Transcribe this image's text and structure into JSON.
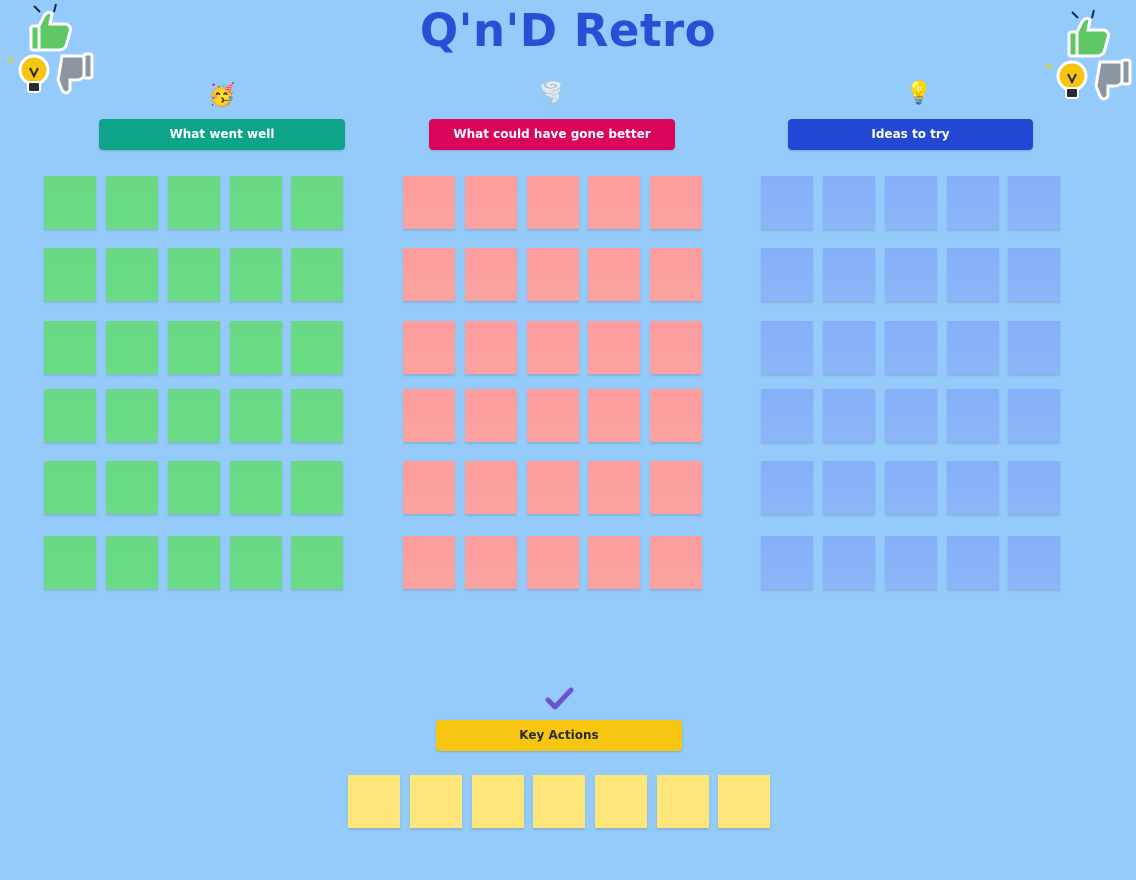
{
  "board": {
    "title": "Q'n'D Retro"
  },
  "stickers": {
    "left": [
      "thumbs-up-icon",
      "lightbulb-icon",
      "thumbs-down-icon"
    ],
    "right": [
      "thumbs-up-icon",
      "lightbulb-icon",
      "thumbs-down-icon"
    ]
  },
  "columns": [
    {
      "key": "well",
      "label": "What went well",
      "icon": "party-face-icon",
      "emoji": "🥳",
      "color": "#0ea48a",
      "note_color": "#6ad885"
    },
    {
      "key": "better",
      "label": "What could have gone better",
      "icon": "tornado-icon",
      "emoji": "🌪️",
      "color": "#d9065c",
      "note_color": "#fd9d9d"
    },
    {
      "key": "ideas",
      "label": "Ideas to try",
      "icon": "lightbulb-icon",
      "emoji": "💡",
      "color": "#2349d4",
      "note_color": "#85aff8"
    }
  ],
  "actions": {
    "label": "Key Actions",
    "icon": "check-mark-icon",
    "emoji": "✔️",
    "color": "#f7c612",
    "note_color": "#fde57a"
  }
}
